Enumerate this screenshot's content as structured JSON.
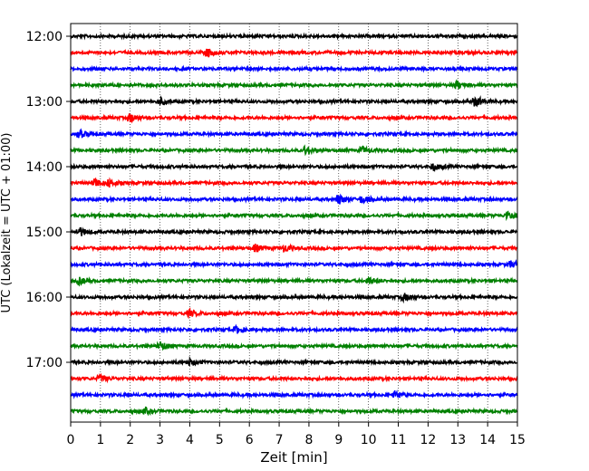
{
  "chart_data": {
    "type": "line",
    "title": "",
    "xlabel": "Zeit  [min]",
    "ylabel": "UTC (Lokalzeit = UTC + 01:00)",
    "xlim": [
      0,
      15
    ],
    "x_ticks": [
      0,
      1,
      2,
      3,
      4,
      5,
      6,
      7,
      8,
      9,
      10,
      11,
      12,
      13,
      14,
      15
    ],
    "y_tick_labels": [
      "12:00",
      "13:00",
      "14:00",
      "15:00",
      "16:00",
      "17:00"
    ],
    "y_tick_rows": [
      0,
      4,
      8,
      12,
      16,
      20
    ],
    "grid": "vertical-dotted",
    "trace_colors": [
      "#000000",
      "#ff0000",
      "#0000ff",
      "#008000"
    ],
    "traces": [
      {
        "start": "12:00",
        "events": []
      },
      {
        "start": "12:15",
        "events": [
          [
            4.6,
            0.9
          ]
        ]
      },
      {
        "start": "12:30",
        "events": []
      },
      {
        "start": "12:45",
        "events": [
          [
            13.0,
            0.8
          ]
        ]
      },
      {
        "start": "13:00",
        "events": [
          [
            3.0,
            0.7
          ],
          [
            13.6,
            1.0
          ]
        ]
      },
      {
        "start": "13:15",
        "events": [
          [
            2.0,
            0.8
          ]
        ]
      },
      {
        "start": "13:30",
        "events": [
          [
            0.3,
            0.7
          ]
        ]
      },
      {
        "start": "13:45",
        "events": [
          [
            7.9,
            0.9
          ],
          [
            9.8,
            0.7
          ]
        ]
      },
      {
        "start": "14:00",
        "events": [
          [
            12.2,
            0.7
          ]
        ]
      },
      {
        "start": "14:15",
        "events": [
          [
            0.8,
            1.0
          ],
          [
            1.3,
            0.7
          ]
        ]
      },
      {
        "start": "14:30",
        "events": [
          [
            9.0,
            1.0
          ],
          [
            9.8,
            0.8
          ]
        ]
      },
      {
        "start": "14:45",
        "events": [
          [
            14.7,
            1.0
          ]
        ]
      },
      {
        "start": "15:00",
        "events": [
          [
            0.3,
            0.9
          ]
        ]
      },
      {
        "start": "15:15",
        "events": [
          [
            6.2,
            0.8
          ],
          [
            7.2,
            0.7
          ]
        ]
      },
      {
        "start": "15:30",
        "events": [
          [
            14.8,
            0.7
          ]
        ]
      },
      {
        "start": "15:45",
        "events": [
          [
            0.3,
            0.7
          ],
          [
            10.0,
            0.7
          ]
        ]
      },
      {
        "start": "16:00",
        "events": [
          [
            11.2,
            0.7
          ]
        ]
      },
      {
        "start": "16:15",
        "events": [
          [
            4.0,
            0.7
          ]
        ]
      },
      {
        "start": "16:30",
        "events": [
          [
            5.6,
            0.7
          ]
        ]
      },
      {
        "start": "16:45",
        "events": [
          [
            3.0,
            1.0
          ]
        ]
      },
      {
        "start": "17:00",
        "events": [
          [
            4.0,
            0.6
          ]
        ]
      },
      {
        "start": "17:15",
        "events": [
          [
            1.0,
            0.6
          ]
        ]
      },
      {
        "start": "17:30",
        "events": [
          [
            10.9,
            0.7
          ]
        ]
      },
      {
        "start": "17:45",
        "events": [
          [
            2.5,
            0.6
          ]
        ]
      }
    ]
  }
}
